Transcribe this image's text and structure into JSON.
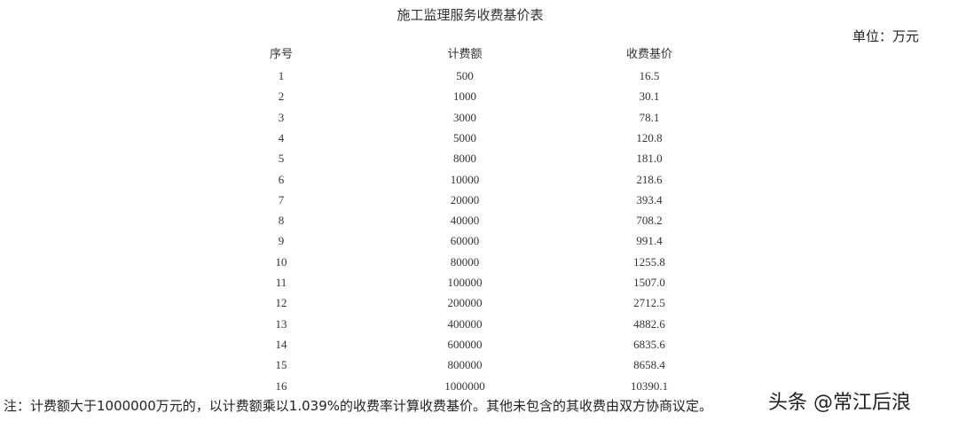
{
  "title": "施工监理服务收费基价表",
  "unit": "单位：万元",
  "headers": [
    "序号",
    "计费额",
    "收费基价"
  ],
  "rows": [
    [
      "1",
      "500",
      "16.5"
    ],
    [
      "2",
      "1000",
      "30.1"
    ],
    [
      "3",
      "3000",
      "78.1"
    ],
    [
      "4",
      "5000",
      "120.8"
    ],
    [
      "5",
      "8000",
      "181.0"
    ],
    [
      "6",
      "10000",
      "218.6"
    ],
    [
      "7",
      "20000",
      "393.4"
    ],
    [
      "8",
      "40000",
      "708.2"
    ],
    [
      "9",
      "60000",
      "991.4"
    ],
    [
      "10",
      "80000",
      "1255.8"
    ],
    [
      "11",
      "100000",
      "1507.0"
    ],
    [
      "12",
      "200000",
      "2712.5"
    ],
    [
      "13",
      "400000",
      "4882.6"
    ],
    [
      "14",
      "600000",
      "6835.6"
    ],
    [
      "15",
      "800000",
      "8658.4"
    ],
    [
      "16",
      "1000000",
      "10390.1"
    ]
  ],
  "note": "注：计费额大于1000000万元的，以计费额乘以1.039%的收费率计算收费基价。其他未包含的其收费由双方协商议定。",
  "watermark": "头条 @常江后浪"
}
